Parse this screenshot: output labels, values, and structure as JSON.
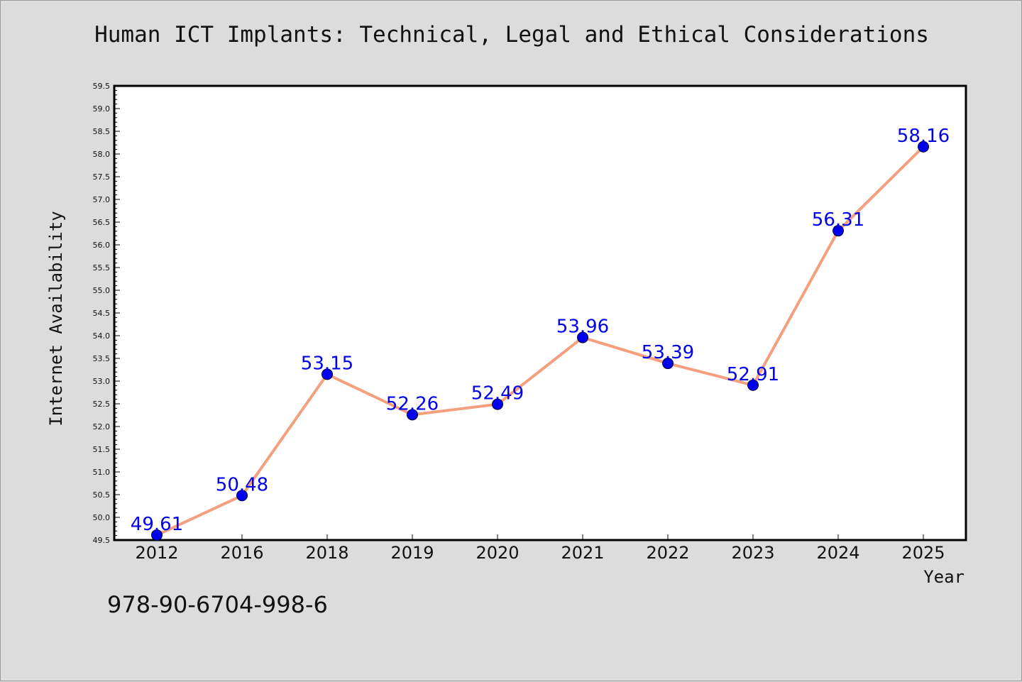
{
  "chart_data": {
    "type": "line",
    "title": "Human ICT Implants: Technical, Legal and Ethical Considerations",
    "xlabel": "Year",
    "ylabel": "Internet Availability",
    "categories": [
      "2012",
      "2016",
      "2018",
      "2019",
      "2020",
      "2021",
      "2022",
      "2023",
      "2024",
      "2025"
    ],
    "series": [
      {
        "values": [
          49.61,
          50.48,
          53.15,
          52.26,
          52.49,
          53.96,
          53.39,
          52.91,
          56.31,
          58.16
        ],
        "data_labels": [
          "49.61",
          "50.48",
          "53.15",
          "52.26",
          "52.49",
          "53.96",
          "53.39",
          "52.91",
          "56.31",
          "58.16"
        ],
        "line_color": "#f4a07e",
        "marker_color": "#0000ee"
      }
    ],
    "ylim": [
      49.5,
      59.5
    ],
    "yticks": [
      "49.5",
      "50.0",
      "50.5",
      "51.0",
      "51.5",
      "52.0",
      "52.5",
      "53.0",
      "53.5",
      "54.0",
      "54.5",
      "55.0",
      "55.5",
      "56.0",
      "56.5",
      "57.0",
      "57.5",
      "58.0",
      "58.5",
      "59.0",
      "59.5"
    ],
    "grid": false,
    "legend": "none",
    "label_color": "#0000ee",
    "background_color": "#dcdcdc",
    "plot_background": "#ffffff"
  },
  "footer": {
    "isbn": "978-90-6704-998-6"
  }
}
